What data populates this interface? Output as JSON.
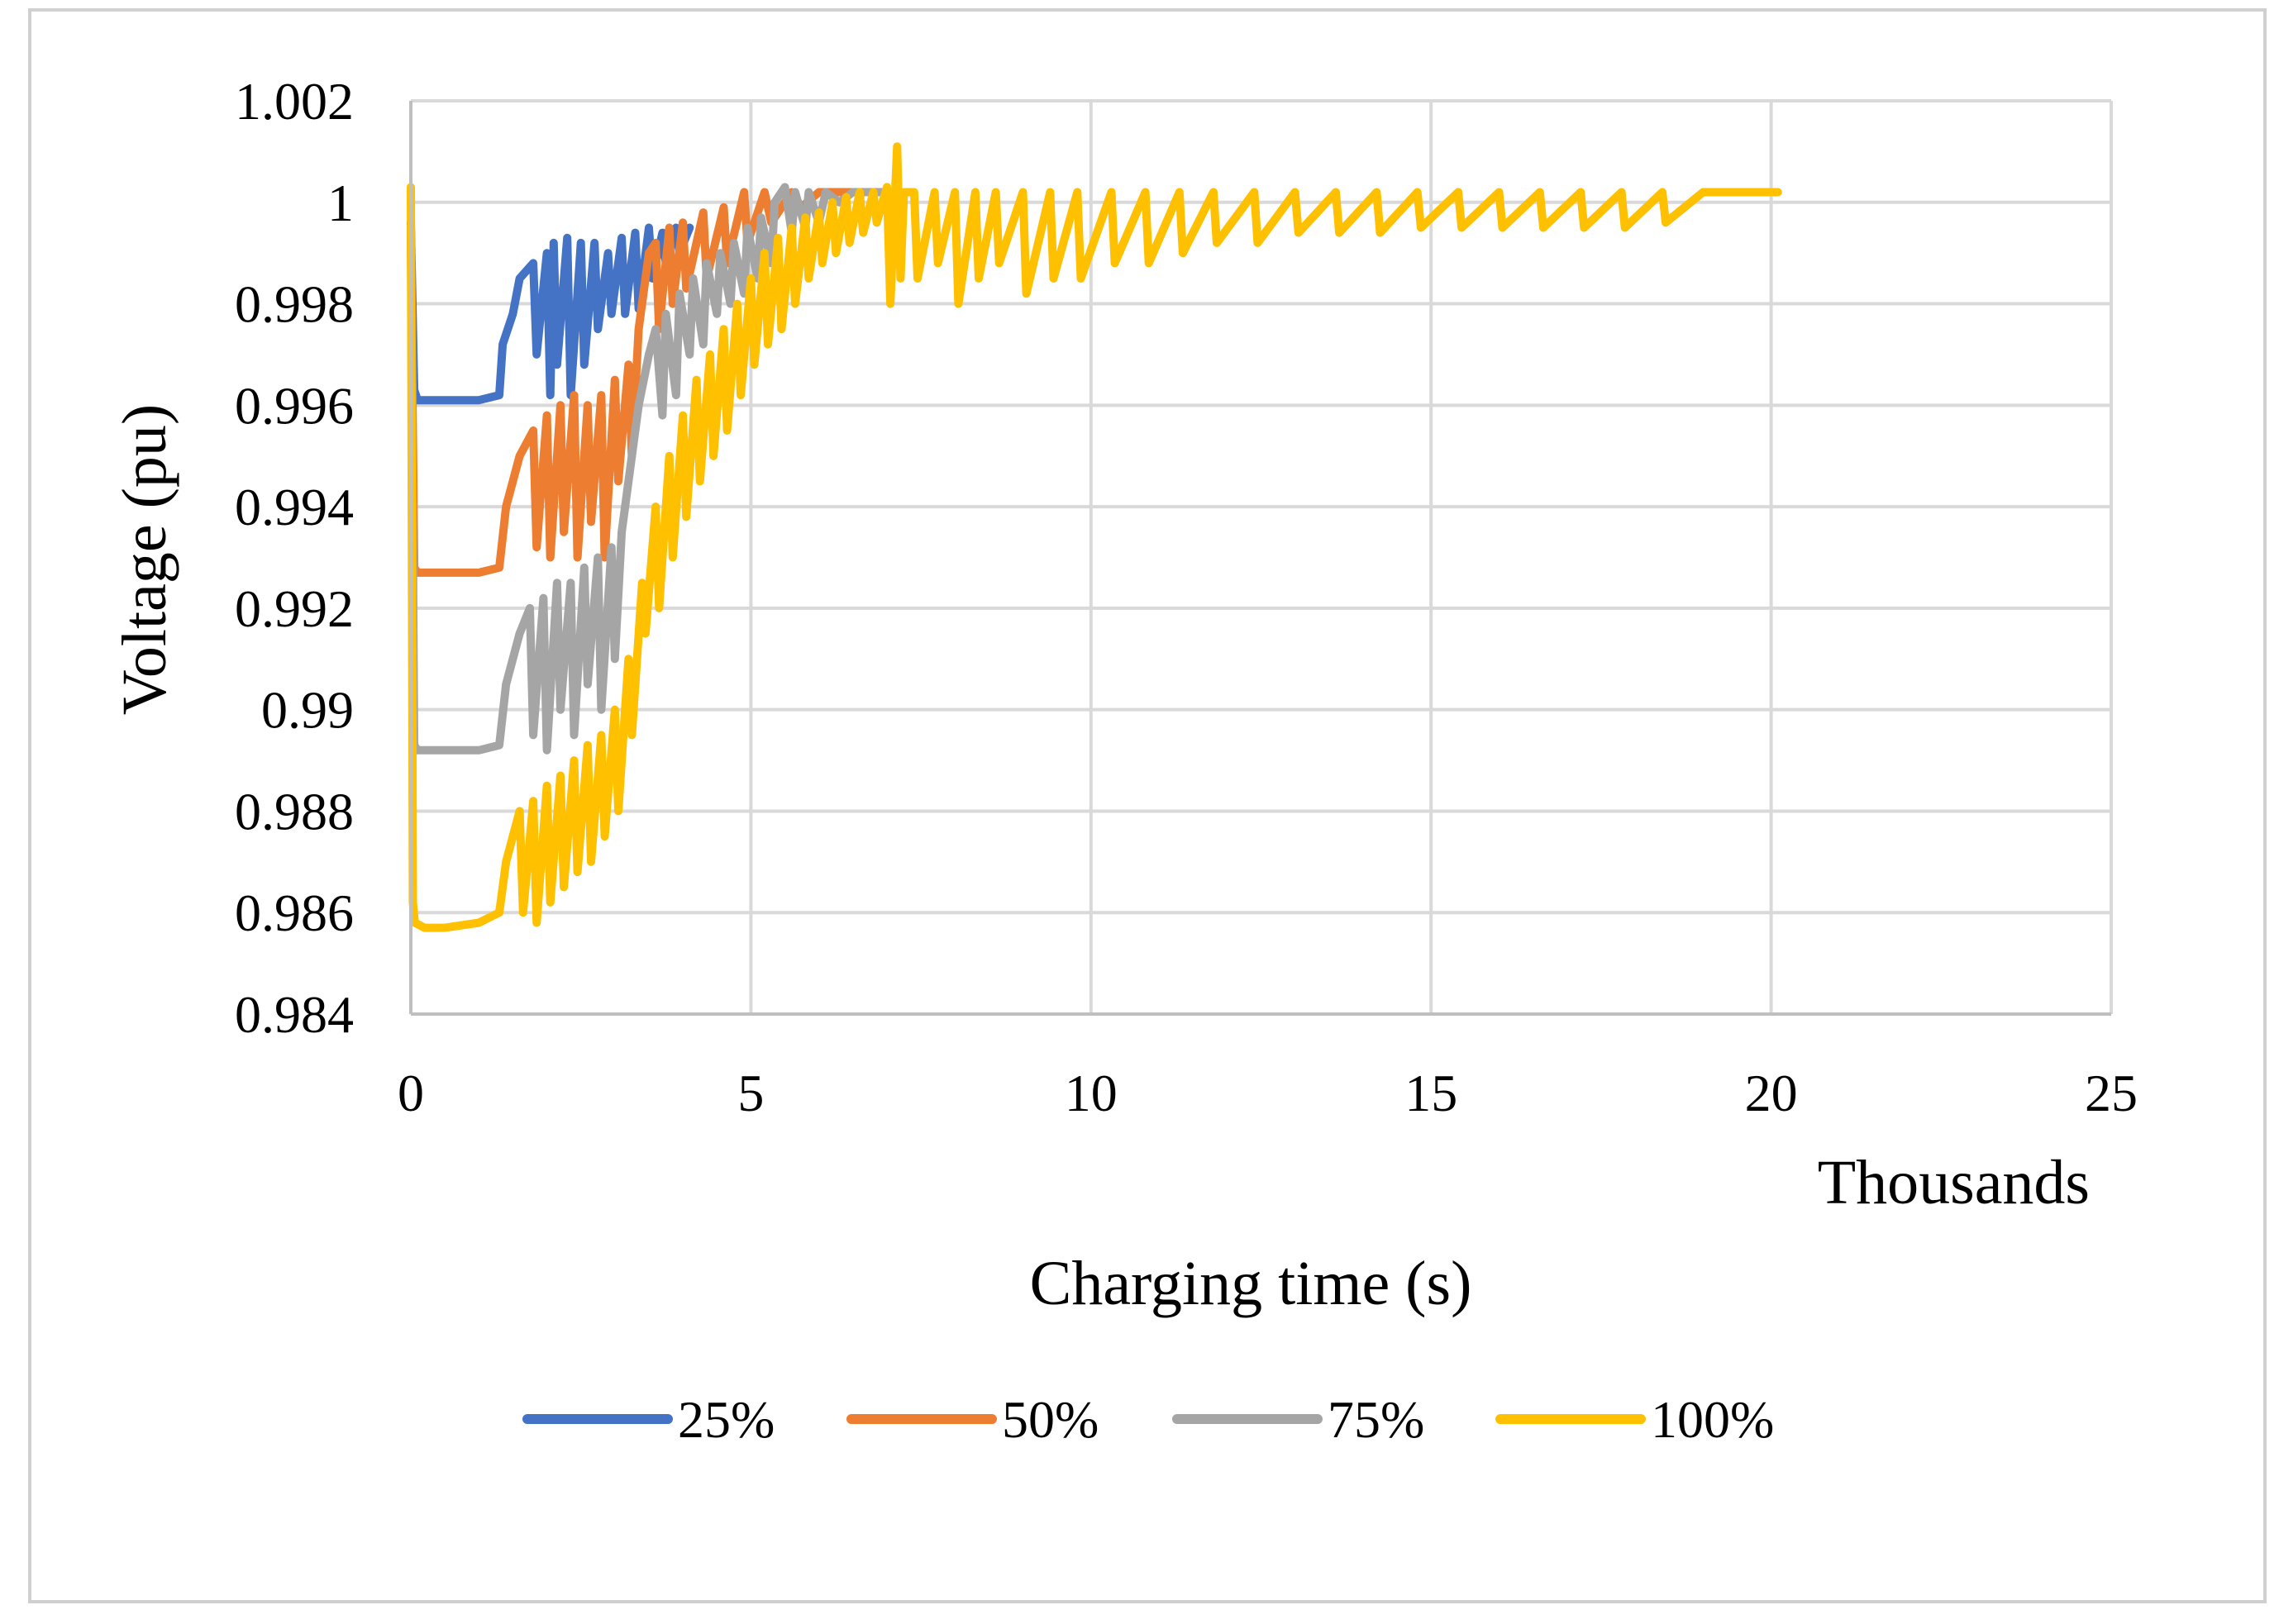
{
  "chart_data": {
    "type": "line",
    "title": "",
    "xlabel": "Charging time (s)",
    "ylabel": "Voltage (pu)",
    "x_unit_label": "Thousands",
    "xlim": [
      0,
      25
    ],
    "ylim": [
      0.984,
      1.002
    ],
    "x_ticks": [
      0,
      5,
      10,
      15,
      20,
      25
    ],
    "x_tick_labels": [
      "0",
      "5",
      "10",
      "15",
      "20",
      "25"
    ],
    "y_ticks": [
      0.984,
      0.986,
      0.988,
      0.99,
      0.992,
      0.994,
      0.996,
      0.998,
      1,
      1.002
    ],
    "y_tick_labels": [
      "0.984",
      "0.986",
      "0.988",
      "0.99",
      "0.992",
      "0.994",
      "0.996",
      "0.998",
      "1",
      "1.002"
    ],
    "grid": true,
    "legend_position": "bottom",
    "series": [
      {
        "name": "25%",
        "color": "#4472C4",
        "x": [
          0,
          0.05,
          0.1,
          0.5,
          1.0,
          1.3,
          1.35,
          1.5,
          1.6,
          1.8,
          1.85,
          2.0,
          2.05,
          2.1,
          2.15,
          2.3,
          2.35,
          2.5,
          2.55,
          2.7,
          2.75,
          2.9,
          2.95,
          3.1,
          3.15,
          3.3,
          3.35,
          3.5,
          3.55,
          3.7,
          3.75,
          3.9,
          3.95,
          4.1
        ],
        "values": [
          0.9996,
          0.9963,
          0.9961,
          0.9961,
          0.9961,
          0.9962,
          0.9972,
          0.9978,
          0.9985,
          0.9988,
          0.997,
          0.999,
          0.9962,
          0.9992,
          0.9968,
          0.9993,
          0.9962,
          0.9992,
          0.9968,
          0.9992,
          0.9975,
          0.999,
          0.9978,
          0.9993,
          0.9978,
          0.9994,
          0.9979,
          0.9995,
          0.9985,
          0.9994,
          0.9988,
          0.9995,
          0.999,
          0.9995
        ]
      },
      {
        "name": "50%",
        "color": "#ED7D31",
        "x": [
          0,
          0.05,
          0.1,
          0.5,
          1.0,
          1.3,
          1.4,
          1.5,
          1.6,
          1.8,
          1.85,
          2.0,
          2.05,
          2.2,
          2.25,
          2.4,
          2.45,
          2.6,
          2.65,
          2.8,
          2.85,
          3.0,
          3.05,
          3.2,
          3.25,
          3.35,
          3.5,
          3.6,
          3.65,
          3.8,
          3.85,
          4.0,
          4.05,
          4.3,
          4.35,
          4.6,
          4.65,
          4.9,
          4.95,
          5.2,
          5.3,
          5.6,
          5.65,
          6.0,
          6.5
        ],
        "values": [
          0.9995,
          0.9928,
          0.9927,
          0.9927,
          0.9927,
          0.9928,
          0.994,
          0.9945,
          0.995,
          0.9955,
          0.9932,
          0.9958,
          0.993,
          0.996,
          0.9935,
          0.9962,
          0.993,
          0.996,
          0.9937,
          0.9962,
          0.993,
          0.9965,
          0.9945,
          0.9968,
          0.995,
          0.9975,
          0.999,
          0.9992,
          0.9975,
          0.9995,
          0.998,
          0.9996,
          0.9983,
          0.9998,
          0.9985,
          0.9999,
          0.9988,
          1.0002,
          0.9992,
          1.0002,
          0.9996,
          1.0002,
          0.9998,
          1.0002,
          1.0002
        ]
      },
      {
        "name": "75%",
        "color": "#A5A5A5",
        "x": [
          0,
          0.05,
          0.1,
          0.5,
          1.0,
          1.3,
          1.4,
          1.5,
          1.6,
          1.75,
          1.8,
          1.95,
          2.0,
          2.15,
          2.2,
          2.35,
          2.4,
          2.55,
          2.6,
          2.75,
          2.8,
          2.95,
          3.0,
          3.1,
          3.2,
          3.35,
          3.5,
          3.6,
          3.7,
          3.75,
          3.9,
          3.95,
          4.1,
          4.15,
          4.3,
          4.35,
          4.5,
          4.55,
          4.7,
          4.75,
          4.9,
          4.95,
          5.1,
          5.15,
          5.3,
          5.35,
          5.5,
          5.6,
          5.65,
          5.8,
          5.85,
          6.0,
          6.1,
          6.3,
          6.5,
          7.0
        ],
        "values": [
          0.9995,
          0.9893,
          0.9892,
          0.9892,
          0.9892,
          0.9893,
          0.9905,
          0.991,
          0.9915,
          0.992,
          0.9895,
          0.9922,
          0.9892,
          0.9925,
          0.99,
          0.9925,
          0.9895,
          0.9928,
          0.9905,
          0.993,
          0.99,
          0.9932,
          0.991,
          0.9935,
          0.9945,
          0.996,
          0.997,
          0.9975,
          0.9958,
          0.9978,
          0.9962,
          0.9982,
          0.997,
          0.9985,
          0.9972,
          0.9988,
          0.9978,
          0.999,
          0.998,
          0.9992,
          0.9982,
          0.9995,
          0.9985,
          0.9997,
          0.9988,
          1.0,
          1.0003,
          0.9994,
          1.0002,
          0.9995,
          1.0002,
          0.9996,
          1.0002,
          1.0,
          1.0002,
          1.0002
        ]
      },
      {
        "name": "100%",
        "color": "#FFC000",
        "x": [
          0,
          0.03,
          0.06,
          0.2,
          0.5,
          1.0,
          1.3,
          1.4,
          1.5,
          1.6,
          1.65,
          1.8,
          1.85,
          2.0,
          2.05,
          2.2,
          2.25,
          2.4,
          2.45,
          2.6,
          2.65,
          2.8,
          2.85,
          3.0,
          3.05,
          3.2,
          3.25,
          3.4,
          3.45,
          3.6,
          3.65,
          3.8,
          3.85,
          4.0,
          4.05,
          4.2,
          4.25,
          4.4,
          4.45,
          4.6,
          4.65,
          4.8,
          4.85,
          5.0,
          5.05,
          5.2,
          5.25,
          5.4,
          5.45,
          5.6,
          5.65,
          5.8,
          5.85,
          6.0,
          6.05,
          6.2,
          6.25,
          6.4,
          6.45,
          6.6,
          6.65,
          6.8,
          6.85,
          7.0,
          7.05,
          7.15,
          7.2,
          7.25,
          7.4,
          7.45,
          7.7,
          7.75,
          8.0,
          8.05,
          8.3,
          8.35,
          8.6,
          8.65,
          9.0,
          9.05,
          9.4,
          9.45,
          9.8,
          9.85,
          10.3,
          10.35,
          10.8,
          10.85,
          11.3,
          11.35,
          11.8,
          11.85,
          12.4,
          12.45,
          13.0,
          13.05,
          13.6,
          13.65,
          14.2,
          14.25,
          14.8,
          14.85,
          15.4,
          15.45,
          16.0,
          16.05,
          16.6,
          16.65,
          17.2,
          17.25,
          17.8,
          17.85,
          18.4,
          18.45,
          19.0,
          19.5,
          20.1
        ],
        "values": [
          1.0003,
          0.9862,
          0.9858,
          0.9857,
          0.9857,
          0.9858,
          0.986,
          0.987,
          0.9875,
          0.988,
          0.986,
          0.9882,
          0.9858,
          0.9885,
          0.9862,
          0.9887,
          0.9865,
          0.989,
          0.9868,
          0.9893,
          0.987,
          0.9895,
          0.9875,
          0.99,
          0.988,
          0.991,
          0.9895,
          0.9925,
          0.9915,
          0.994,
          0.992,
          0.995,
          0.993,
          0.9958,
          0.9938,
          0.9965,
          0.9945,
          0.997,
          0.995,
          0.9975,
          0.9955,
          0.998,
          0.9962,
          0.9985,
          0.9968,
          0.999,
          0.9972,
          0.9993,
          0.9975,
          0.9995,
          0.998,
          0.9997,
          0.9985,
          0.9998,
          0.9988,
          1.0,
          0.999,
          1.0001,
          0.9992,
          1.0002,
          0.9994,
          1.0002,
          0.9996,
          1.0003,
          0.998,
          1.0011,
          0.9985,
          1.0002,
          1.0002,
          0.9985,
          1.0002,
          0.9988,
          1.0002,
          0.998,
          1.0002,
          0.9985,
          1.0002,
          0.9988,
          1.0002,
          0.9982,
          1.0002,
          0.9985,
          1.0002,
          0.9985,
          1.0002,
          0.9988,
          1.0002,
          0.9988,
          1.0002,
          0.999,
          1.0002,
          0.9992,
          1.0002,
          0.9992,
          1.0002,
          0.9994,
          1.0002,
          0.9994,
          1.0002,
          0.9994,
          1.0002,
          0.9995,
          1.0002,
          0.9995,
          1.0002,
          0.9995,
          1.0002,
          0.9995,
          1.0002,
          0.9995,
          1.0002,
          0.9995,
          1.0002,
          0.9996,
          1.0002,
          1.0002,
          1.0002
        ]
      }
    ]
  }
}
